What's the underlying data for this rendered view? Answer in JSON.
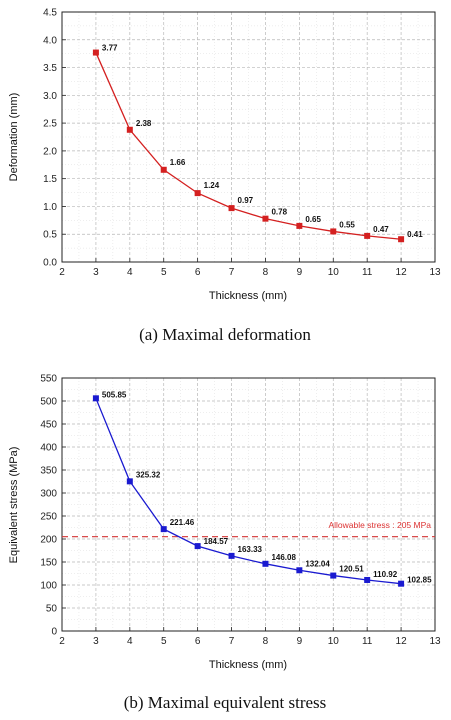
{
  "chart_data": [
    {
      "type": "line",
      "title": "(a) Maximal deformation",
      "xlabel": "Thickness (mm)",
      "ylabel": "Deformation (mm)",
      "xlim": [
        2,
        13
      ],
      "ylim": [
        0,
        4.5
      ],
      "xticks": [
        2,
        3,
        4,
        5,
        6,
        7,
        8,
        9,
        10,
        11,
        12,
        13
      ],
      "yticks": [
        0.0,
        0.5,
        1.0,
        1.5,
        2.0,
        2.5,
        3.0,
        3.5,
        4.0,
        4.5
      ],
      "ytick_labels": [
        "0.0",
        "0.5",
        "1.0",
        "1.5",
        "2.0",
        "2.5",
        "3.0",
        "3.5",
        "4.0",
        "4.5"
      ],
      "grid": true,
      "series": [
        {
          "color": "#d42020",
          "marker": "square",
          "x": [
            3,
            4,
            5,
            6,
            7,
            8,
            9,
            10,
            11,
            12
          ],
          "y": [
            3.77,
            2.38,
            1.66,
            1.24,
            0.97,
            0.78,
            0.65,
            0.55,
            0.47,
            0.41
          ],
          "labels": [
            "3.77",
            "2.38",
            "1.66",
            "1.24",
            "0.97",
            "0.78",
            "0.65",
            "0.55",
            "0.47",
            "0.41"
          ]
        }
      ]
    },
    {
      "type": "line",
      "title": "(b) Maximal equivalent stress",
      "xlabel": "Thickness (mm)",
      "ylabel": "Equivalent stress (MPa)",
      "xlim": [
        2,
        13
      ],
      "ylim": [
        0,
        550
      ],
      "xticks": [
        2,
        3,
        4,
        5,
        6,
        7,
        8,
        9,
        10,
        11,
        12,
        13
      ],
      "yticks": [
        0,
        50,
        100,
        150,
        200,
        250,
        300,
        350,
        400,
        450,
        500,
        550
      ],
      "ytick_labels": [
        "0",
        "50",
        "100",
        "150",
        "200",
        "250",
        "300",
        "350",
        "400",
        "450",
        "500",
        "550"
      ],
      "grid": true,
      "series": [
        {
          "color": "#1a1ad0",
          "marker": "square",
          "x": [
            3,
            4,
            5,
            6,
            7,
            8,
            9,
            10,
            11,
            12
          ],
          "y": [
            505.85,
            325.32,
            221.46,
            184.57,
            163.33,
            146.08,
            132.04,
            120.51,
            110.92,
            102.85
          ],
          "labels": [
            "505.85",
            "325.32",
            "221.46",
            "184.57",
            "163.33",
            "146.08",
            "132.04",
            "120.51",
            "110.92",
            "102.85"
          ]
        }
      ],
      "reference_line": {
        "y": 205,
        "label": "Allowable stress : 205 MPa",
        "color": "#d33333",
        "style": "dashed"
      }
    }
  ]
}
